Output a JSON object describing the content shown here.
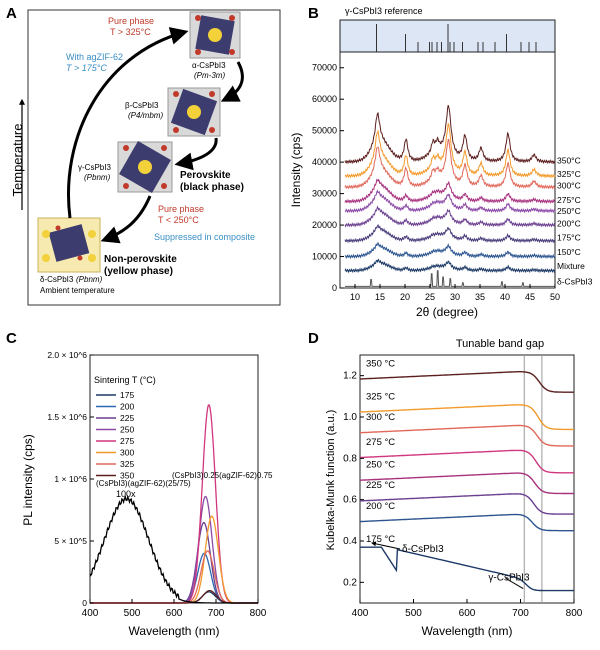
{
  "panels": {
    "A": {
      "letter": "A",
      "y_axis_label": "Temperature",
      "pure_phase_high": "Pure phase",
      "pure_phase_high_temp": "T > 325°C",
      "with_zif": "With agZIF-62",
      "with_zif_temp": "T > 175°C",
      "alpha_name": "α-CsPbI3",
      "alpha_space": "(Pm-3m)",
      "beta_name": "β-CsPbI3",
      "beta_space": "(P4/mbm)",
      "gamma_name": "γ-CsPbI3",
      "gamma_space": "(Pbnm)",
      "perovskite": "Perovskite",
      "perovskite_sub": "(black phase)",
      "pure_phase_low": "Pure phase",
      "pure_phase_low_temp": "T < 250°C",
      "suppressed": "Suppressed in composite",
      "nonperov": "Non-perovskite",
      "nonperov_sub": "(yellow phase)",
      "delta_name": "δ-CsPbI3",
      "delta_space": "(Pbnm)",
      "ambient": "Ambient temperature",
      "colors": {
        "red": "#c0392b",
        "blue": "#3a8ec4",
        "yellow_box": "#f6eab0"
      }
    },
    "B": {
      "letter": "B",
      "reference_label": "γ-CsPbI3 reference",
      "xlabel": "2θ (degree)",
      "ylabel": "Intensity (cps)",
      "x_ticks": [
        "10",
        "15",
        "20",
        "25",
        "30",
        "35",
        "40",
        "45",
        "50"
      ],
      "y_ticks": [
        "0",
        "10000",
        "20000",
        "30000",
        "40000",
        "50000",
        "60000",
        "70000"
      ],
      "curve_labels": [
        "350°C",
        "325°C",
        "300°C",
        "275°C",
        "250°C",
        "200°C",
        "175°C",
        "150°C",
        "Mixture",
        "δ-CsPbI3"
      ]
    },
    "C": {
      "letter": "C",
      "xlabel": "Wavelength (nm)",
      "ylabel": "PL intensity (cps)",
      "x_ticks": [
        "400",
        "500",
        "600",
        "700",
        "800"
      ],
      "y_ticks": [
        "0",
        "5 × 10^5",
        "1 × 10^6",
        "1.5 × 10^6",
        "2.0 × 10^6"
      ],
      "legend_title": "Sintering T (°C)",
      "legend_items": [
        "175",
        "200",
        "225",
        "250",
        "275",
        "300",
        "325",
        "350"
      ],
      "annot_composite": "(CsPbI3)0.25(agZIF-62)0.75",
      "annot_zif": "(CsPbI3)(agZIF-62)(25/75)",
      "annot_scale": "100x"
    },
    "D": {
      "letter": "D",
      "xlabel": "Wavelength (nm)",
      "ylabel": "Kubelka-Munk function (a.u.)",
      "x_ticks": [
        "400",
        "500",
        "600",
        "700",
        "800"
      ],
      "y_ticks": [
        "0.2",
        "0.4",
        "0.6",
        "0.8",
        "1.0",
        "1.2"
      ],
      "band_gap_label": "Tunable band gap",
      "curve_labels": [
        "350 °C",
        "325 °C",
        "300 °C",
        "275 °C",
        "250 °C",
        "225 °C",
        "200 °C",
        "175 °C"
      ],
      "annot_delta": "δ-CsPbI3",
      "annot_gamma": "γ-CsPbI3"
    }
  },
  "chart_data": [
    {
      "type": "line",
      "panel": "B",
      "xlabel": "2θ (degree)",
      "ylabel": "Intensity (cps)",
      "xlim": [
        7,
        50
      ],
      "ylim": [
        0,
        75000
      ],
      "series": [
        {
          "name": "350°C",
          "offset": 40000,
          "color": "#5c1f1f"
        },
        {
          "name": "325°C",
          "offset": 35500,
          "color": "#f39a2c"
        },
        {
          "name": "300°C",
          "offset": 32000,
          "color": "#e0685a"
        },
        {
          "name": "275°C",
          "offset": 27500,
          "color": "#a8327f"
        },
        {
          "name": "250°C",
          "offset": 24500,
          "color": "#8b4aa6"
        },
        {
          "name": "200°C",
          "offset": 20000,
          "color": "#6a3f8f"
        },
        {
          "name": "175°C",
          "offset": 15000,
          "color": "#4a3c7a"
        },
        {
          "name": "150°C",
          "offset": 10000,
          "color": "#2c5590"
        },
        {
          "name": "Mixture",
          "offset": 5500,
          "color": "#1d3a66"
        },
        {
          "name": "δ-CsPbI3",
          "offset": 500,
          "color": "#555555"
        }
      ]
    },
    {
      "type": "line",
      "panel": "C",
      "xlabel": "Wavelength (nm)",
      "ylabel": "PL intensity (cps)",
      "xlim": [
        400,
        800
      ],
      "ylim": [
        0,
        2000000
      ],
      "series": [
        {
          "name": "175",
          "peak_nm": 683,
          "peak": 90000,
          "color": "#1d3a66"
        },
        {
          "name": "200",
          "peak_nm": 672,
          "peak": 400000,
          "color": "#2c68b0"
        },
        {
          "name": "225",
          "peak_nm": 671,
          "peak": 650000,
          "color": "#6a3f8f"
        },
        {
          "name": "250",
          "peak_nm": 675,
          "peak": 860000,
          "color": "#8b4aa6"
        },
        {
          "name": "275",
          "peak_nm": 683,
          "peak": 1600000,
          "color": "#d0377f"
        },
        {
          "name": "300",
          "peak_nm": 690,
          "peak": 700000,
          "color": "#f39a2c"
        },
        {
          "name": "325",
          "peak_nm": 680,
          "peak": 420000,
          "color": "#e0685a"
        },
        {
          "name": "350",
          "peak_nm": 685,
          "peak": 100000,
          "color": "#5c1f1f"
        },
        {
          "name": "(CsPbI3)(agZIF-62)(25/75)",
          "peak_nm": 487,
          "peak": 840000,
          "color": "#000000"
        }
      ]
    },
    {
      "type": "line",
      "panel": "D",
      "xlabel": "Wavelength (nm)",
      "ylabel": "Kubelka-Munk function (a.u.)",
      "xlim": [
        400,
        800
      ],
      "ylim": [
        0.1,
        1.3
      ],
      "band_gap_lines_nm": [
        707,
        740
      ],
      "series": [
        {
          "name": "350 °C",
          "high": 1.22,
          "low": 1.12,
          "edge": 735,
          "color": "#5c1f1f"
        },
        {
          "name": "325 °C",
          "high": 1.06,
          "low": 0.94,
          "edge": 733,
          "color": "#f39a2c"
        },
        {
          "name": "300 °C",
          "high": 0.96,
          "low": 0.86,
          "edge": 731,
          "color": "#e0685a"
        },
        {
          "name": "275 °C",
          "high": 0.84,
          "low": 0.73,
          "edge": 729,
          "color": "#d0377f"
        },
        {
          "name": "250 °C",
          "high": 0.73,
          "low": 0.63,
          "edge": 727,
          "color": "#a8327f"
        },
        {
          "name": "225 °C",
          "high": 0.63,
          "low": 0.53,
          "edge": 725,
          "color": "#6a3f8f"
        },
        {
          "name": "200 °C",
          "high": 0.53,
          "low": 0.45,
          "edge": 722,
          "color": "#2c5590"
        },
        {
          "name": "175 °C",
          "high": 0.37,
          "low": 0.16,
          "edge": 712,
          "color": "#1d3a66"
        }
      ]
    }
  ]
}
